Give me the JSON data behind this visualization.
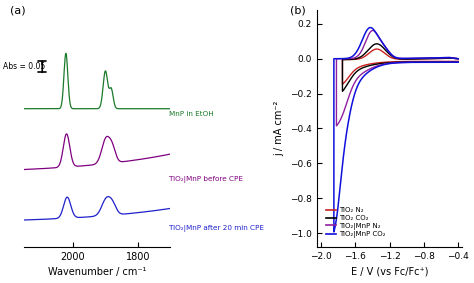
{
  "panel_a": {
    "label": "(a)",
    "xlabel": "Wavenumber / cm⁻¹",
    "green_color": "#1a7a2a",
    "purple_color": "#800080",
    "blue_color": "#2020cc",
    "green_label": "MnP in EtOH",
    "purple_label": "TiO₂|MnP before CPE",
    "blue_label": "TiO₂|MnP after 20 min CPE"
  },
  "panel_b": {
    "label": "(b)",
    "xlabel": "E / V (vs Fc/Fc⁺)",
    "ylabel": "j / mA cm⁻²",
    "xmin": -2.05,
    "xmax": -0.35,
    "ymin": -1.08,
    "ymax": 0.28,
    "yticks": [
      0.2,
      0.0,
      -0.2,
      -0.4,
      -0.6,
      -0.8,
      -1.0
    ],
    "xticks": [
      -2.0,
      -1.6,
      -1.2,
      -0.8,
      -0.4
    ],
    "red_color": "#cc2020",
    "black_color": "#000000",
    "purple_color": "#9020a0",
    "blue_color": "#1010dd",
    "legend_labels": [
      "TiO₂ N₂",
      "TiO₂ CO₂",
      "TiO₂|MnP N₂",
      "TiO₂|MnP CO₂"
    ]
  }
}
